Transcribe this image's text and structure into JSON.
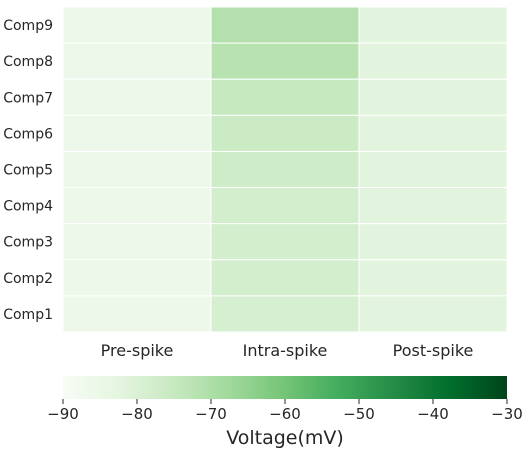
{
  "chart_data": {
    "type": "heatmap",
    "rows": [
      "Comp9",
      "Comp8",
      "Comp7",
      "Comp6",
      "Comp5",
      "Comp4",
      "Comp3",
      "Comp2",
      "Comp1"
    ],
    "columns": [
      "Pre-spike",
      "Intra-spike",
      "Post-spike"
    ],
    "values": [
      [
        -86,
        -71,
        -82
      ],
      [
        -86,
        -72,
        -82
      ],
      [
        -86,
        -75,
        -82
      ],
      [
        -86,
        -76,
        -82
      ],
      [
        -86,
        -77,
        -82
      ],
      [
        -86,
        -78,
        -82
      ],
      [
        -86,
        -78,
        -82
      ],
      [
        -86,
        -78,
        -82
      ],
      [
        -86,
        -79,
        -82
      ]
    ],
    "colorbar": {
      "label": "Voltage(mV)",
      "range": [
        -90,
        -30
      ],
      "ticks": [
        -90,
        -80,
        -70,
        -60,
        -50,
        -40,
        -30
      ],
      "orientation": "horizontal",
      "position": "bottom",
      "colormap": "Greens",
      "colors": [
        "#f7fcf5",
        "#e5f5e0",
        "#c7e9c0",
        "#a1d99b",
        "#74c476",
        "#41ab5d",
        "#238b45",
        "#006d2c",
        "#00441b"
      ]
    },
    "grid_line_color": "#ffffff"
  }
}
